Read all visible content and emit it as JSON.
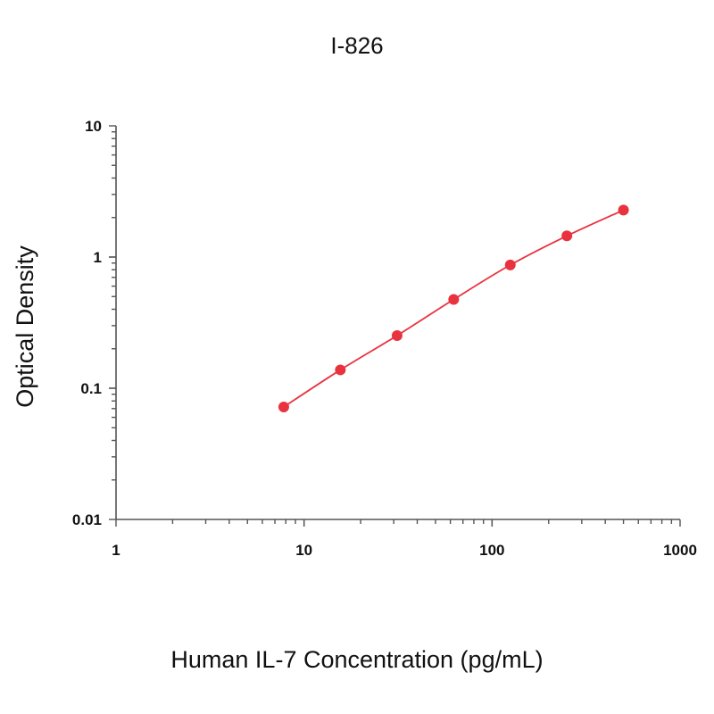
{
  "chart_data": {
    "type": "scatter",
    "title": "I-826",
    "xlabel": "Human IL-7 Concentration (pg/mL)",
    "ylabel": "Optical Density",
    "x_scale": "log",
    "y_scale": "log",
    "xlim": [
      1,
      1000
    ],
    "ylim": [
      0.01,
      10
    ],
    "x_ticks": [
      {
        "value": 1,
        "label": "1"
      },
      {
        "value": 10,
        "label": "10"
      },
      {
        "value": 100,
        "label": "100"
      },
      {
        "value": 1000,
        "label": "1000"
      }
    ],
    "y_ticks": [
      {
        "value": 0.01,
        "label": "0.01"
      },
      {
        "value": 0.1,
        "label": "0.1"
      },
      {
        "value": 1,
        "label": "1"
      },
      {
        "value": 10,
        "label": "10"
      }
    ],
    "grid": false,
    "series": [
      {
        "color": "#e8333f",
        "marker": "circle",
        "line": "smooth",
        "x": [
          7.8,
          15.6,
          31.25,
          62.5,
          125,
          250,
          500
        ],
        "y": [
          0.072,
          0.138,
          0.252,
          0.475,
          0.87,
          1.45,
          2.28
        ]
      }
    ]
  }
}
